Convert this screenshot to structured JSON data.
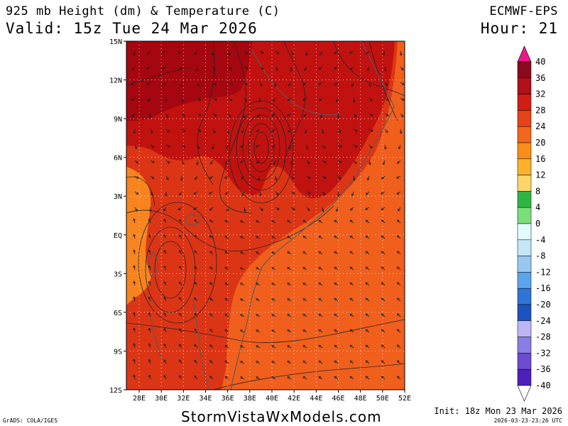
{
  "header": {
    "title": "925 mb Height (dm) & Temperature (C)",
    "valid": "Valid: 15z Tue 24 Mar 2026",
    "model": "ECMWF-EPS",
    "hour": "Hour: 21"
  },
  "map": {
    "lat_labels": [
      "15N",
      "12N",
      "9N",
      "6N",
      "3N",
      "EQ",
      "3S",
      "6S",
      "9S",
      "12S"
    ],
    "lon_labels": [
      "28E",
      "30E",
      "32E",
      "34E",
      "36E",
      "38E",
      "40E",
      "42E",
      "44E",
      "46E",
      "48E",
      "50E",
      "52E"
    ],
    "temperature_colors": {
      "t36": "#a5060f",
      "t32": "#c11210",
      "t28": "#dc3515",
      "t24": "#f05f1c",
      "t20": "#f8841e"
    },
    "coastline_color": "#5a5a5a",
    "contour_color": "#262626",
    "wind_barb_color": "#222222"
  },
  "colorbar": {
    "labels": [
      "40",
      "36",
      "32",
      "28",
      "24",
      "20",
      "16",
      "12",
      "8",
      "4",
      "0",
      "-4",
      "-8",
      "-12",
      "-16",
      "-20",
      "-24",
      "-28",
      "-32",
      "-36",
      "-40"
    ],
    "colors": [
      "#8c0a1d",
      "#b0101a",
      "#d01d16",
      "#e6421a",
      "#f2661e",
      "#f98d1a",
      "#fbb12e",
      "#fdd56b",
      "#2eb544",
      "#7ade7a",
      "#e2fbff",
      "#c4e6f7",
      "#98c8f0",
      "#5ca5ea",
      "#2f75d5",
      "#1c53c0",
      "#bdb5f5",
      "#8a7de5",
      "#6e4bd0",
      "#4d21b8",
      "#2a0a9c"
    ],
    "top_arrow_color": "#e8198c"
  },
  "footer": {
    "watermark": "StormVistaWxModels.com",
    "credit": "GrADS: COLA/IGES",
    "init": "Init: 18z Mon 23 Mar 2026",
    "timestamp": "2026-03-23-23:26 UTC"
  }
}
